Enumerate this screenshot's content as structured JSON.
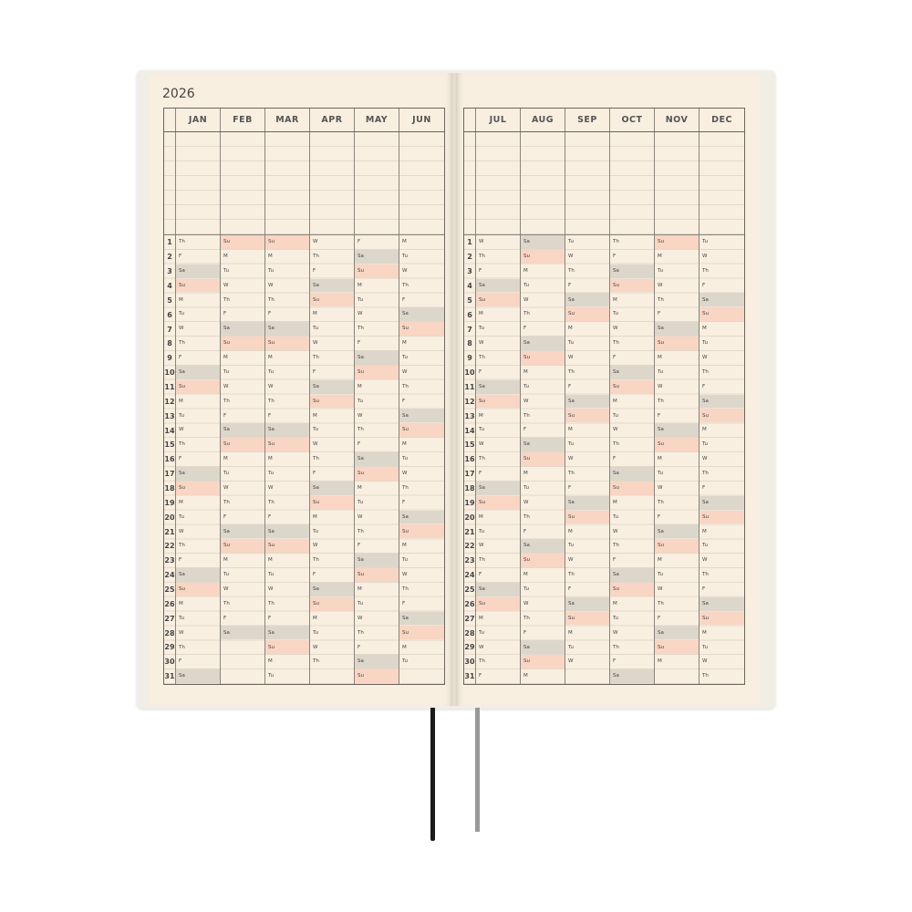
{
  "year": "2026",
  "left_page": {
    "months": [
      {
        "name": "JAN",
        "days": "Th F Sa Su M Tu W Th F Sa Su M Tu W Th F Sa Su M Tu W Th F Sa Su M Tu W Th F Sa"
      },
      {
        "name": "FEB",
        "days": "Su M Tu W Th F Sa Su M Tu W Th F Sa Su M Tu W Th F Sa Su M Tu W Th F Sa"
      },
      {
        "name": "MAR",
        "days": "Su M Tu W Th F Sa Su M Tu W Th F Sa Su M Tu W Th F Sa Su M Tu W Th F Sa Su M Tu"
      },
      {
        "name": "APR",
        "days": "W Th F Sa Su M Tu W Th F Sa Su M Tu W Th F Sa Su M Tu W Th F Sa Su M Tu W Th"
      },
      {
        "name": "MAY",
        "days": "F Sa Su M Tu W Th F Sa Su M Tu W Th F Sa Su M Tu W Th F Sa Su M Tu W Th F Sa Su"
      },
      {
        "name": "JUN",
        "days": "M Tu W Th F Sa Su M Tu W Th F Sa Su M Tu W Th F Sa Su M Tu W Th F Sa Su M Tu"
      }
    ]
  },
  "right_page": {
    "months": [
      {
        "name": "JUL",
        "days": "W Th F Sa Su M Tu W Th F Sa Su M Tu W Th F Sa Su M Tu W Th F Sa Su M Tu W Th F"
      },
      {
        "name": "AUG",
        "days": "Sa Su M Tu W Th F Sa Su M Tu W Th F Sa Su M Tu W Th F Sa Su M Tu W Th F Sa Su M"
      },
      {
        "name": "SEP",
        "days": "Tu W Th F Sa Su M Tu W Th F Sa Su M Tu W Th F Sa Su M Tu W Th F Sa Su M Tu W"
      },
      {
        "name": "OCT",
        "days": "Th F Sa Su M Tu W Th F Sa Su M Tu W Th F Sa Su M Tu W Th F Sa Su M Tu W Th F Sa"
      },
      {
        "name": "NOV",
        "days": "Su M Tu W Th F Sa Su M Tu W Th F Sa Su M Tu W Th F Sa Su M Tu W Th F Sa Su M"
      },
      {
        "name": "DEC",
        "days": "Tu W Th F Sa Su M Tu W Th F Sa Su M Tu W Th F Sa Su M Tu W Th F Sa Su M Tu W Th"
      }
    ]
  },
  "colors": {
    "page": "#f8efe0",
    "saturday_fill": "#ddd6cb",
    "sunday_fill": "#f9d5c3",
    "sunday_text": "#e0634e",
    "ribbon_left": "#1c1a1a",
    "ribbon_right": "#9a9898"
  }
}
